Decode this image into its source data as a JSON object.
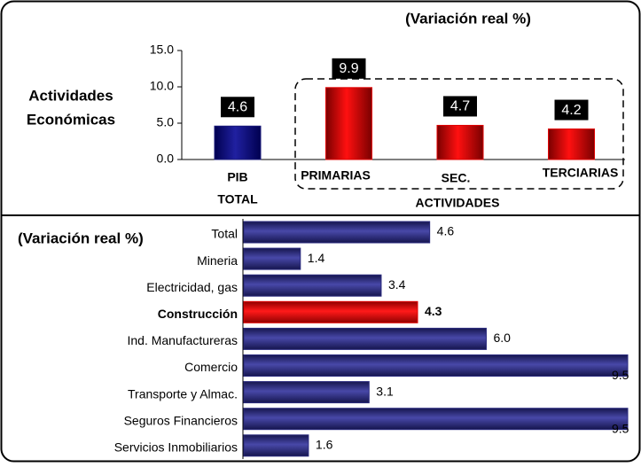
{
  "chart_data": [
    {
      "type": "bar",
      "title": "(Variación real %)",
      "y_label": [
        "Actividades",
        "Económicas"
      ],
      "categories": [
        [
          "PIB",
          "TOTAL"
        ],
        [
          "PRIMARIAS"
        ],
        [
          "SEC."
        ],
        [
          "TERCIARIAS"
        ]
      ],
      "group_label": "ACTIVIDADES",
      "values": [
        4.6,
        9.9,
        4.7,
        4.2
      ],
      "colors": [
        "#1a1a7a",
        "#e00000",
        "#e00000",
        "#e00000"
      ],
      "ylim": [
        0,
        15
      ],
      "yticks": [
        {
          "value": 0,
          "label": "0.0"
        },
        {
          "value": 5,
          "label": "5.0"
        },
        {
          "value": 10,
          "label": "10.0"
        },
        {
          "value": 15,
          "label": "15.0"
        }
      ]
    },
    {
      "type": "hbar",
      "title": "(Variación real %)",
      "categories": [
        "Total",
        "Mineria",
        "Electricidad, gas",
        "Construcción",
        "Ind. Manufactureras",
        "Comercio",
        "Transporte y Almac.",
        "Seguros Financieros",
        "Servicios Inmobiliarios"
      ],
      "values": [
        4.6,
        1.4,
        3.4,
        4.3,
        6.0,
        9.5,
        3.1,
        9.5,
        1.6
      ],
      "value_labels": [
        "4.6",
        "1.4",
        "3.4",
        "4.3",
        "6.0",
        "9.5",
        "3.1",
        "9.5",
        "1.6"
      ],
      "colors": [
        "#2a2a7e",
        "#2a2a7e",
        "#2a2a7e",
        "#e00000",
        "#2a2a7e",
        "#2a2a7e",
        "#2a2a7e",
        "#2a2a7e",
        "#2a2a7e"
      ]
    }
  ]
}
